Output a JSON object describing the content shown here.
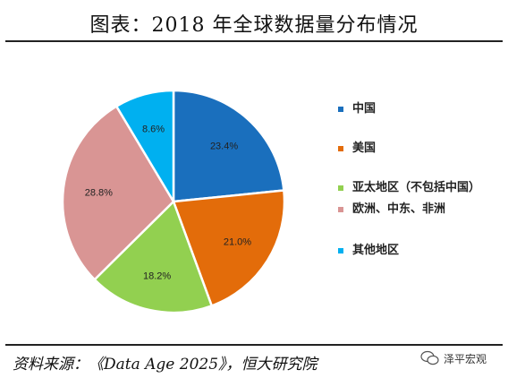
{
  "title": "图表：2018 年全球数据量分布情况",
  "chart_data": {
    "type": "pie",
    "categories": [
      "中国",
      "美国",
      "亚太地区（不包括中国）",
      "欧洲、中东、非洲",
      "其他地区"
    ],
    "values": [
      23.4,
      21.0,
      18.2,
      28.8,
      8.6
    ],
    "value_labels": [
      "23.4%",
      "21.0%",
      "18.2%",
      "28.8%",
      "8.6%"
    ],
    "colors": [
      "#1a6fbd",
      "#e36c0a",
      "#92d050",
      "#d99594",
      "#00b0f0"
    ],
    "legend": [
      {
        "label": "中国",
        "color": "#1a6fbd"
      },
      {
        "label": "美国",
        "color": "#e36c0a"
      },
      {
        "label": "亚太地区（不包括中国）",
        "color": "#92d050"
      },
      {
        "label": "欧洲、中东、非洲",
        "color": "#d99594"
      },
      {
        "label": "其他地区",
        "color": "#00b0f0"
      }
    ],
    "legend_position": "right"
  },
  "source": "资料来源：《Data Age 2025》，恒大研究院",
  "watermark": "泽平宏观"
}
